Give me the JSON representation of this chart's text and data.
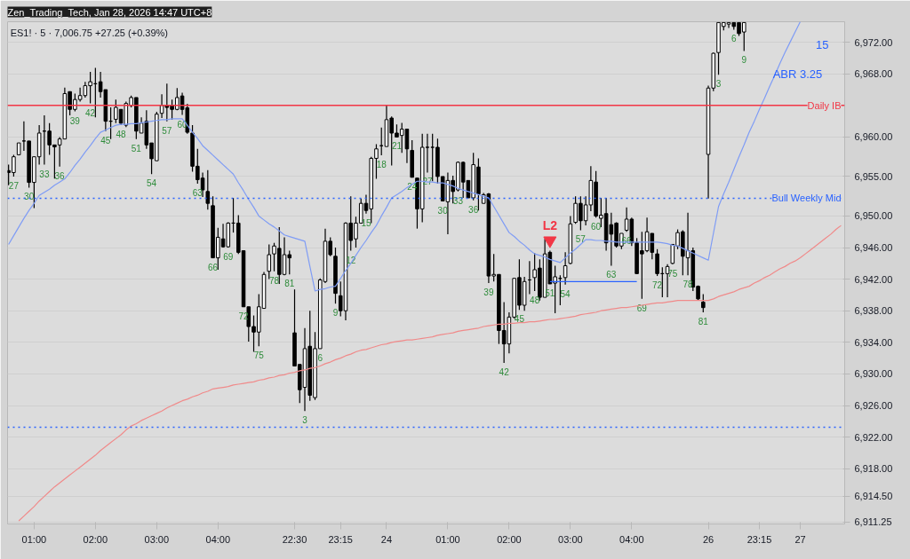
{
  "chart_data": {
    "type": "candlestick",
    "title": "ES1! · 5 · 7,006.75 +27.25 (+0.39%)",
    "subtitle": "Zen_Trading_Tech, Jan 28, 2026 14:47 UTC+8",
    "categories": [
      null,
      null,
      null,
      null,
      null,
      "01:00",
      null,
      null,
      null,
      null,
      null,
      null,
      null,
      null,
      null,
      null,
      null,
      "02:00",
      null,
      null,
      null,
      null,
      null,
      null,
      null,
      null,
      null,
      null,
      null,
      "03:00",
      null,
      null,
      null,
      null,
      null,
      null,
      null,
      null,
      null,
      null,
      null,
      "04:00",
      null,
      null,
      null,
      null,
      null,
      null,
      null,
      null,
      null,
      null,
      null,
      null,
      null,
      null,
      "22:30",
      null,
      null,
      null,
      null,
      null,
      null,
      null,
      null,
      "23:15",
      null,
      null,
      null,
      null,
      null,
      null,
      null,
      null,
      "24",
      null,
      null,
      null,
      null,
      null,
      null,
      null,
      null,
      null,
      null,
      null,
      "01:00",
      null,
      null,
      null,
      null,
      null,
      null,
      null,
      null,
      null,
      null,
      null,
      "02:00",
      null,
      null,
      null,
      null,
      null,
      null,
      null,
      null,
      null,
      null,
      null,
      "03:00",
      null,
      null,
      null,
      null,
      null,
      null,
      null,
      null,
      null,
      null,
      null,
      "04:00",
      null,
      null,
      null,
      null,
      null,
      null,
      null,
      null,
      null,
      null,
      null,
      null,
      null,
      null,
      "26",
      null,
      null,
      null,
      null,
      null,
      null,
      null,
      null,
      null,
      "23:15",
      null,
      null,
      null,
      null,
      null,
      null,
      null,
      "27",
      null,
      null,
      null,
      null,
      null,
      null,
      null,
      null
    ],
    "ohlc": [
      [
        6955.75,
        6956.5,
        6953.9,
        6955.5
      ],
      [
        6955.5,
        6957.75,
        6955.0,
        6957.5
      ],
      [
        6957.75,
        6959.25,
        6957.75,
        6959.25
      ],
      [
        6959.5,
        6962.0,
        6958.25,
        6959.5
      ],
      [
        6959.5,
        6959.5,
        6953.6,
        6954.25
      ],
      [
        6954.25,
        6957.5,
        6951.0,
        6957.5
      ],
      [
        6957.5,
        6961.5,
        6956.5,
        6960.5
      ],
      [
        6960.75,
        6962.75,
        6956.5,
        6960.75
      ],
      [
        6960.75,
        6961.75,
        6957.75,
        6959.0
      ],
      [
        6959.0,
        6959.0,
        6954.75,
        6958.75
      ],
      [
        6959.0,
        6960.0,
        6956.25,
        6959.75
      ],
      [
        6959.75,
        6966.25,
        6959.75,
        6965.5
      ],
      [
        6965.75,
        6965.75,
        6962.75,
        6963.5
      ],
      [
        6963.5,
        6965.5,
        6963.25,
        6964.75
      ],
      [
        6964.75,
        6966.25,
        6964.5,
        6965.25
      ],
      [
        6965.25,
        6967.0,
        6965.0,
        6966.5
      ],
      [
        6966.5,
        6968.25,
        6964.25,
        6967.0
      ],
      [
        6966.75,
        6968.75,
        6962.5,
        6966.75
      ],
      [
        6967.0,
        6968.25,
        6965.0,
        6965.75
      ],
      [
        6966.0,
        6966.0,
        6960.75,
        6962.0
      ],
      [
        6962.0,
        6963.75,
        6959.75,
        6962.0
      ],
      [
        6962.25,
        6964.75,
        6961.75,
        6963.75
      ],
      [
        6963.5,
        6963.5,
        6961.5,
        6961.75
      ],
      [
        6961.5,
        6964.5,
        6961.25,
        6964.25
      ],
      [
        6964.0,
        6965.25,
        6963.75,
        6965.0
      ],
      [
        6965.0,
        6965.0,
        6959.75,
        6960.75
      ],
      [
        6960.5,
        6962.5,
        6960.5,
        6961.75
      ],
      [
        6962.0,
        6963.4,
        6958.5,
        6959.0
      ],
      [
        6959.25,
        6959.25,
        6955.3,
        6957.25
      ],
      [
        6957.0,
        6963.2,
        6957.0,
        6962.9
      ],
      [
        6963.0,
        6965.4,
        6962.4,
        6964.0
      ],
      [
        6964.0,
        6966.75,
        6962.0,
        6963.75
      ],
      [
        6964.0,
        6964.75,
        6962.2,
        6963.5
      ],
      [
        6963.5,
        6966.2,
        6963.4,
        6965.0
      ],
      [
        6965.2,
        6965.6,
        6962.8,
        6963.5
      ],
      [
        6963.7,
        6964.2,
        6960.4,
        6960.6
      ],
      [
        6960.5,
        6961.5,
        6955.6,
        6956.3
      ],
      [
        6956.3,
        6958.5,
        6954.1,
        6954.6
      ],
      [
        6954.8,
        6955.5,
        6952.4,
        6953.3
      ],
      [
        6953.1,
        6955.8,
        6950.8,
        6951.6
      ],
      [
        6951.3,
        6952.5,
        6944.7,
        6944.7
      ],
      [
        6944.7,
        6948.5,
        6943.2,
        6947.3
      ],
      [
        6947.1,
        6949.0,
        6946.0,
        6946.1
      ],
      [
        6946.1,
        6949.2,
        6946.0,
        6949.1
      ],
      [
        6949.1,
        6952.3,
        6947.9,
        6949.1
      ],
      [
        6949.1,
        6950.1,
        6945.2,
        6945.4
      ],
      [
        6945.6,
        6945.6,
        6938.5,
        6938.5
      ],
      [
        6938.5,
        6938.5,
        6934.1,
        6936.0
      ],
      [
        6936.0,
        6937.4,
        6932.8,
        6935.3
      ],
      [
        6935.3,
        6940.1,
        6933.5,
        6938.5
      ],
      [
        6938.3,
        6942.9,
        6938.3,
        6942.6
      ],
      [
        6943.0,
        6946.4,
        6942.0,
        6945.1
      ],
      [
        6945.2,
        6946.6,
        6943.0,
        6946.2
      ],
      [
        6945.9,
        6948.6,
        6941.4,
        6942.6
      ],
      [
        6942.6,
        6947.3,
        6942.5,
        6945.1
      ],
      [
        6945.1,
        6945.6,
        6942.6,
        6944.7
      ],
      [
        6935.2,
        6940.7,
        6931.0,
        6931.0
      ],
      [
        6931.2,
        6931.2,
        6926.3,
        6928.0
      ],
      [
        6928.3,
        6935.8,
        6925.3,
        6933.2
      ],
      [
        6933.5,
        6938.0,
        6926.6,
        6927.3
      ],
      [
        6927.0,
        6935.3,
        6926.7,
        6933.2
      ],
      [
        6933.2,
        6942.1,
        6933.2,
        6941.9
      ],
      [
        6941.7,
        6948.4,
        6941.5,
        6946.8
      ],
      [
        6946.8,
        6947.3,
        6944.9,
        6945.1
      ],
      [
        6944.9,
        6946.0,
        6938.9,
        6940.2
      ],
      [
        6939.9,
        6941.7,
        6937.3,
        6938.0
      ],
      [
        6938.0,
        6949.2,
        6936.8,
        6949.1
      ],
      [
        6949.1,
        6952.5,
        6945.6,
        6946.9
      ],
      [
        6947.1,
        6949.9,
        6946.0,
        6949.1
      ],
      [
        6949.1,
        6952.2,
        6949.1,
        6951.6
      ],
      [
        6951.6,
        6952.7,
        6950.3,
        6950.7
      ],
      [
        6950.9,
        6957.5,
        6949.1,
        6957.3
      ],
      [
        6957.3,
        6959.1,
        6954.7,
        6958.5
      ],
      [
        6958.9,
        6961.2,
        6957.7,
        6958.9
      ],
      [
        6958.8,
        6964.0,
        6958.8,
        6962.2
      ],
      [
        6962.4,
        6962.6,
        6956.4,
        6960.5
      ],
      [
        6960.5,
        6961.6,
        6960.0,
        6960.0
      ],
      [
        6960.2,
        6961.8,
        6958.0,
        6961.0
      ],
      [
        6961.0,
        6961.0,
        6956.7,
        6958.5
      ],
      [
        6958.3,
        6959.6,
        6954.9,
        6954.9
      ],
      [
        6954.8,
        6954.8,
        6948.4,
        6950.9
      ],
      [
        6950.9,
        6960.4,
        6949.2,
        6958.7
      ],
      [
        6958.7,
        6960.4,
        6955.5,
        6958.7
      ],
      [
        6958.7,
        6960.4,
        6954.4,
        6958.7
      ],
      [
        6958.7,
        6959.8,
        6954.1,
        6955.0
      ],
      [
        6955.0,
        6955.0,
        6951.9,
        6951.9
      ],
      [
        6951.8,
        6955.5,
        6947.7,
        6954.5
      ],
      [
        6954.5,
        6955.1,
        6951.6,
        6953.1
      ],
      [
        6953.3,
        6956.9,
        6953.1,
        6956.8
      ],
      [
        6956.8,
        6956.9,
        6952.3,
        6954.3
      ],
      [
        6954.5,
        6954.5,
        6952.3,
        6952.3
      ],
      [
        6952.3,
        6958.0,
        6952.0,
        6956.5
      ],
      [
        6956.2,
        6957.3,
        6950.7,
        6952.8
      ],
      [
        6951.6,
        6952.9,
        6951.6,
        6952.7
      ],
      [
        6952.8,
        6952.9,
        6941.5,
        6942.4
      ],
      [
        6942.4,
        6945.2,
        6941.7,
        6942.6
      ],
      [
        6942.6,
        6942.6,
        6933.8,
        6935.5
      ],
      [
        6935.5,
        6939.1,
        6931.4,
        6933.8
      ],
      [
        6933.8,
        6937.8,
        6932.6,
        6937.2
      ],
      [
        6937.2,
        6942.1,
        6937.0,
        6942.1
      ],
      [
        6942.2,
        6944.5,
        6938.1,
        6938.7
      ],
      [
        6938.7,
        6942.3,
        6938.0,
        6941.7
      ],
      [
        6941.9,
        6944.3,
        6940.1,
        6941.9
      ],
      [
        6942.2,
        6945.3,
        6940.5,
        6943.2
      ],
      [
        6943.4,
        6944.5,
        6939.3,
        6939.7
      ],
      [
        6939.7,
        6947.1,
        6939.7,
        6945.2
      ],
      [
        6945.4,
        6945.6,
        6941.4,
        6941.4
      ],
      [
        6941.5,
        6943.7,
        6937.7,
        6942.3
      ],
      [
        6942.1,
        6942.5,
        6938.7,
        6942.1
      ],
      [
        6942.2,
        6945.4,
        6941.3,
        6943.7
      ],
      [
        6944.0,
        6950.0,
        6943.9,
        6949.0
      ],
      [
        6949.2,
        6952.5,
        6949.0,
        6951.6
      ],
      [
        6951.6,
        6952.5,
        6948.2,
        6949.4
      ],
      [
        6949.4,
        6952.5,
        6948.8,
        6951.4
      ],
      [
        6951.4,
        6956.3,
        6950.6,
        6954.5
      ],
      [
        6954.3,
        6955.7,
        6949.8,
        6950.0
      ],
      [
        6949.7,
        6952.3,
        6948.6,
        6950.1
      ],
      [
        6950.3,
        6952.3,
        6945.6,
        6946.6
      ],
      [
        6948.9,
        6950.4,
        6943.7,
        6947.7
      ],
      [
        6949.1,
        6949.2,
        6946.0,
        6946.2
      ],
      [
        6946.2,
        6947.8,
        6945.8,
        6947.8
      ],
      [
        6948.2,
        6951.1,
        6948.0,
        6949.6
      ],
      [
        6949.6,
        6949.8,
        6946.2,
        6946.6
      ],
      [
        6946.6,
        6947.2,
        6942.7,
        6942.7
      ],
      [
        6945.6,
        6948.0,
        6939.5,
        6945.2
      ],
      [
        6945.6,
        6949.8,
        6945.4,
        6948.0
      ],
      [
        6947.8,
        6947.8,
        6944.5,
        6945.4
      ],
      [
        6945.2,
        6945.8,
        6942.4,
        6942.7
      ],
      [
        6942.7,
        6943.5,
        6939.7,
        6942.7
      ],
      [
        6942.7,
        6943.9,
        6939.7,
        6943.6
      ],
      [
        6944.0,
        6946.4,
        6943.9,
        6946.4
      ],
      [
        6946.2,
        6948.3,
        6945.8,
        6947.9
      ],
      [
        6948.0,
        6948.2,
        6942.5,
        6944.9
      ],
      [
        6944.7,
        6950.4,
        6942.5,
        6945.6
      ],
      [
        6945.6,
        6946.0,
        6940.5,
        6941.0
      ],
      [
        6941.1,
        6941.2,
        6939.3,
        6939.5
      ],
      [
        6939.1,
        6940.1,
        6937.8,
        6938.4
      ],
      [
        6957.8,
        6966.5,
        6952.2,
        6966.2
      ],
      [
        6966.2,
        6970.7,
        6965.8,
        6970.6
      ],
      [
        6970.7,
        6974.5,
        6967.9,
        6974.5
      ],
      [
        6974.0,
        6974.5,
        6973.5,
        6974.5
      ],
      [
        6974.3,
        6974.5,
        6973.8,
        6974.5
      ],
      [
        6974.5,
        6974.5,
        6973.6,
        6974.0
      ],
      [
        6974.5,
        6974.5,
        6972.8,
        6973.1
      ],
      [
        6973.3,
        6974.5,
        6970.9,
        6974.5
      ],
      null,
      null,
      null,
      null,
      null,
      null,
      null,
      null,
      null,
      null,
      null,
      null,
      null,
      null,
      null,
      null,
      null,
      null,
      null
    ],
    "value_labels": [
      null,
      "27",
      null,
      null,
      "30",
      null,
      null,
      "33",
      null,
      null,
      "36",
      null,
      null,
      "39",
      null,
      null,
      "42",
      null,
      null,
      "45",
      null,
      null,
      "48",
      null,
      null,
      "51",
      null,
      null,
      "54",
      null,
      null,
      "57",
      null,
      null,
      "60",
      null,
      null,
      "63",
      null,
      null,
      "66",
      null,
      null,
      "69",
      null,
      null,
      "72",
      null,
      null,
      "75",
      null,
      null,
      "78",
      null,
      null,
      "81",
      null,
      null,
      "3",
      null,
      null,
      "6",
      null,
      null,
      "9",
      null,
      null,
      "12",
      null,
      null,
      "15",
      null,
      null,
      "18",
      null,
      null,
      "21",
      null,
      null,
      "24",
      null,
      null,
      "27",
      null,
      null,
      "30",
      null,
      null,
      "33",
      null,
      null,
      "36",
      null,
      null,
      "39",
      null,
      null,
      "42",
      null,
      null,
      "45",
      null,
      null,
      "48",
      null,
      null,
      "51",
      null,
      null,
      "54",
      null,
      null,
      "57",
      null,
      null,
      "60",
      null,
      null,
      "63",
      null,
      null,
      "66",
      null,
      null,
      "69",
      null,
      null,
      "72",
      null,
      null,
      "75",
      null,
      null,
      "78",
      null,
      null,
      "81",
      null,
      null,
      "3",
      null,
      null,
      "6",
      null,
      "9",
      null,
      null,
      null,
      null,
      null,
      null,
      null,
      null,
      null,
      null,
      null,
      null,
      null,
      null,
      null,
      null,
      null,
      null,
      null
    ],
    "series": [
      {
        "type": "line",
        "color": "#7f9cf5",
        "values": [
          6946.4,
          6947.5,
          6948.6,
          6949.7,
          6950.7,
          6951.6,
          6952.6,
          6953.0,
          6953.4,
          6953.9,
          6954.3,
          6954.7,
          6955.5,
          6956.4,
          6957.2,
          6958.1,
          6958.9,
          6959.8,
          6960.6,
          6960.9,
          6961.2,
          6961.5,
          6961.6,
          6961.6,
          6961.7,
          6961.7,
          6961.8,
          6961.9,
          6962.0,
          6962.1,
          6962.2,
          6962.2,
          6962.3,
          6962.3,
          6962.3,
          6961.5,
          6960.6,
          6959.8,
          6958.9,
          6958.3,
          6957.7,
          6957.1,
          6956.5,
          6955.9,
          6955.3,
          6954.2,
          6953.2,
          6952.1,
          6951.1,
          6950.0,
          6949.5,
          6949.0,
          6948.6,
          6948.1,
          6947.6,
          6947.4,
          6947.2,
          6947.0,
          6946.8,
          6943.6,
          6940.5,
          6940.7,
          6940.8,
          6941.0,
          6941.1,
          6942.1,
          6943.1,
          6944.0,
          6945.0,
          6946.0,
          6946.9,
          6947.9,
          6948.8,
          6950.0,
          6951.1,
          6952.3,
          6952.7,
          6953.1,
          6953.6,
          6954.0,
          6954.4,
          6954.4,
          6954.3,
          6954.3,
          6954.2,
          6954.2,
          6954.0,
          6953.8,
          6953.5,
          6953.3,
          6953.1,
          6952.9,
          6952.7,
          6952.5,
          6952.3,
          6951.2,
          6950.1,
          6949.0,
          6947.9,
          6947.4,
          6946.8,
          6946.3,
          6945.7,
          6945.2,
          6945.0,
          6944.8,
          6944.5,
          6944.3,
          6944.1,
          6944.7,
          6945.3,
          6945.8,
          6946.4,
          6947.0,
          6947.0,
          6946.9,
          6946.9,
          6946.8,
          6946.8,
          6946.7,
          6946.7,
          6946.7,
          6946.7,
          6946.7,
          6946.7,
          6946.7,
          6946.7,
          6946.7,
          6946.6,
          6946.5,
          6946.3,
          6946.2,
          6945.9,
          6945.6,
          6945.3,
          6945.0,
          6944.7,
          6944.4,
          6947.8,
          6951.2,
          6952.8,
          6954.3,
          6955.9,
          6957.5,
          6959.0,
          6960.6,
          6962.0,
          6963.5,
          6964.9,
          6966.4,
          6967.8,
          6969.3,
          6970.7,
          6972.0,
          6973.3,
          6974.6,
          null,
          null,
          null,
          null,
          null,
          null,
          null,
          null
        ]
      },
      {
        "type": "line",
        "color": "#f08a8a",
        "values": [
          null,
          null,
          6911.4,
          6912.0,
          6912.6,
          6913.2,
          6913.9,
          6914.5,
          6915.1,
          6915.7,
          6916.2,
          6916.7,
          6917.2,
          6917.7,
          6918.2,
          6918.7,
          6919.2,
          6919.7,
          6920.3,
          6920.8,
          6921.3,
          6921.8,
          6922.3,
          6922.9,
          6923.4,
          6923.7,
          6924.1,
          6924.4,
          6924.7,
          6925.0,
          6925.3,
          6925.7,
          6926.0,
          6926.3,
          6926.6,
          6926.8,
          6927.1,
          6927.3,
          6927.6,
          6927.8,
          6928.1,
          6928.2,
          6928.3,
          6928.4,
          6928.6,
          6928.7,
          6928.8,
          6928.9,
          6929.0,
          6929.2,
          6929.3,
          6929.5,
          6929.6,
          6929.8,
          6929.9,
          6930.1,
          6930.2,
          6930.4,
          6930.5,
          6930.7,
          6930.8,
          6931.0,
          6931.3,
          6931.5,
          6931.8,
          6932.0,
          6932.3,
          6932.5,
          6932.8,
          6933.0,
          6933.1,
          6933.3,
          6933.5,
          6933.7,
          6933.8,
          6934.0,
          6934.1,
          6934.2,
          6934.3,
          6934.3,
          6934.4,
          6934.5,
          6934.6,
          6934.7,
          6934.9,
          6935.0,
          6935.1,
          6935.2,
          6935.4,
          6935.5,
          6935.6,
          6935.7,
          6935.8,
          6936.0,
          6936.1,
          6936.2,
          6936.3,
          6936.3,
          6936.4,
          6936.4,
          6936.5,
          6936.5,
          6936.6,
          6936.6,
          6936.7,
          6936.8,
          6936.9,
          6936.9,
          6937.0,
          6937.1,
          6937.2,
          6937.3,
          6937.5,
          6937.6,
          6937.7,
          6937.8,
          6938.0,
          6938.1,
          6938.2,
          6938.3,
          6938.4,
          6938.4,
          6938.5,
          6938.6,
          6938.7,
          6938.8,
          6938.9,
          6939.0,
          6939.0,
          6939.1,
          6939.2,
          6939.3,
          6939.3,
          6939.3,
          6939.3,
          6939.3,
          6939.3,
          6939.3,
          6939.5,
          6939.8,
          6940.0,
          6940.2,
          6940.4,
          6940.7,
          6940.9,
          6941.1,
          6941.5,
          6941.8,
          6942.2,
          6942.5,
          6942.9,
          6943.3,
          6943.6,
          6944.0,
          6944.3,
          6944.7,
          6945.2,
          6945.7,
          6946.2,
          6946.7,
          6947.2,
          6947.7,
          6948.3,
          6948.8
        ]
      },
      {
        "type": "line",
        "color": "#2962ff",
        "values": [
          null,
          null,
          null,
          null,
          null,
          null,
          null,
          null,
          null,
          null,
          null,
          null,
          null,
          null,
          null,
          null,
          null,
          null,
          null,
          null,
          null,
          null,
          null,
          null,
          null,
          null,
          null,
          null,
          null,
          null,
          null,
          null,
          null,
          null,
          null,
          null,
          null,
          null,
          null,
          null,
          null,
          null,
          null,
          null,
          null,
          null,
          null,
          null,
          null,
          null,
          null,
          null,
          null,
          null,
          null,
          null,
          null,
          null,
          null,
          null,
          null,
          null,
          null,
          null,
          null,
          null,
          null,
          null,
          null,
          null,
          null,
          null,
          null,
          null,
          null,
          null,
          null,
          null,
          null,
          null,
          null,
          null,
          null,
          null,
          null,
          null,
          null,
          null,
          null,
          null,
          null,
          null,
          null,
          null,
          null,
          null,
          null,
          null,
          null,
          null,
          null,
          null,
          null,
          null,
          null,
          null,
          6941.7,
          6941.7,
          6941.7,
          6941.7,
          6941.7,
          6941.7,
          6941.7,
          6941.7,
          6941.7,
          6941.7,
          6941.7,
          6941.7,
          6941.7,
          6941.7,
          6941.7,
          6941.7,
          6941.7,
          6941.7,
          null,
          null,
          null,
          null,
          null,
          null,
          null,
          null,
          null,
          null,
          null,
          null,
          null,
          null,
          null,
          null,
          null,
          null,
          null,
          null,
          null,
          null,
          null,
          null,
          null,
          null,
          null,
          null,
          null,
          null,
          null,
          null,
          null,
          null,
          null,
          null,
          null,
          null,
          null,
          null
        ]
      },
      {
        "type": "scatter",
        "name": "L2",
        "color": "#f23645",
        "marker": "triangle",
        "values": [
          null,
          null,
          null,
          null,
          null,
          null,
          null,
          null,
          null,
          null,
          null,
          null,
          null,
          null,
          null,
          null,
          null,
          null,
          null,
          null,
          null,
          null,
          null,
          null,
          null,
          null,
          null,
          null,
          null,
          null,
          null,
          null,
          null,
          null,
          null,
          null,
          null,
          null,
          null,
          null,
          null,
          null,
          null,
          null,
          null,
          null,
          null,
          null,
          null,
          null,
          null,
          null,
          null,
          null,
          null,
          null,
          null,
          null,
          null,
          null,
          null,
          null,
          null,
          null,
          null,
          null,
          null,
          null,
          null,
          null,
          null,
          null,
          null,
          null,
          null,
          null,
          null,
          null,
          null,
          null,
          null,
          null,
          null,
          null,
          null,
          null,
          null,
          null,
          null,
          null,
          null,
          null,
          null,
          null,
          null,
          null,
          null,
          null,
          null,
          null,
          null,
          null,
          null,
          null,
          null,
          null,
          6946.9,
          null,
          null,
          null,
          null,
          null,
          null,
          null,
          null,
          null,
          null,
          null,
          null,
          null,
          null,
          null,
          null,
          null,
          null,
          null,
          null,
          null,
          null,
          null,
          null,
          null,
          null,
          null,
          null,
          null,
          null,
          null,
          null,
          null,
          null,
          null,
          null,
          null,
          null,
          null,
          null,
          null,
          null,
          null,
          null,
          null,
          null,
          null,
          null,
          null,
          null,
          null,
          null,
          null,
          null,
          null,
          null,
          null
        ]
      }
    ],
    "ylim": [
      6911.0,
      6974.6
    ],
    "yticks": [
      {
        "value": 6972,
        "label": "6,972.00"
      },
      {
        "value": 6968,
        "label": "6,968.00"
      },
      {
        "value": 6960,
        "label": "6,960.00"
      },
      {
        "value": 6955,
        "label": "6,955.00"
      },
      {
        "value": 6950,
        "label": "6,950.00"
      },
      {
        "value": 6946,
        "label": "6,946.00"
      },
      {
        "value": 6942,
        "label": "6,942.00"
      },
      {
        "value": 6938,
        "label": "6,938.00"
      },
      {
        "value": 6934,
        "label": "6,934.00"
      },
      {
        "value": 6930,
        "label": "6,930.00"
      },
      {
        "value": 6926,
        "label": "6,926.00"
      },
      {
        "value": 6922,
        "label": "6,922.00"
      },
      {
        "value": 6918,
        "label": "6,918.00"
      },
      {
        "value": 6914.5,
        "label": "6,914.50"
      },
      {
        "value": 6911.25,
        "label": "6,911.25"
      }
    ],
    "grid": "y",
    "ref_lines": [
      {
        "axis": "y",
        "value": 6964.0,
        "label": "Daily IB",
        "color": "#f23645",
        "line_style": "solid"
      },
      {
        "axis": "y",
        "value": 6952.25,
        "label": "Bull Weekly Mid",
        "color": "#2962ff",
        "line_style": "dotted"
      },
      {
        "axis": "y",
        "value": 6923.25,
        "color": "#2962ff",
        "line_style": "dotted"
      }
    ],
    "annotations": [
      "15",
      "ABR   3.25"
    ]
  }
}
